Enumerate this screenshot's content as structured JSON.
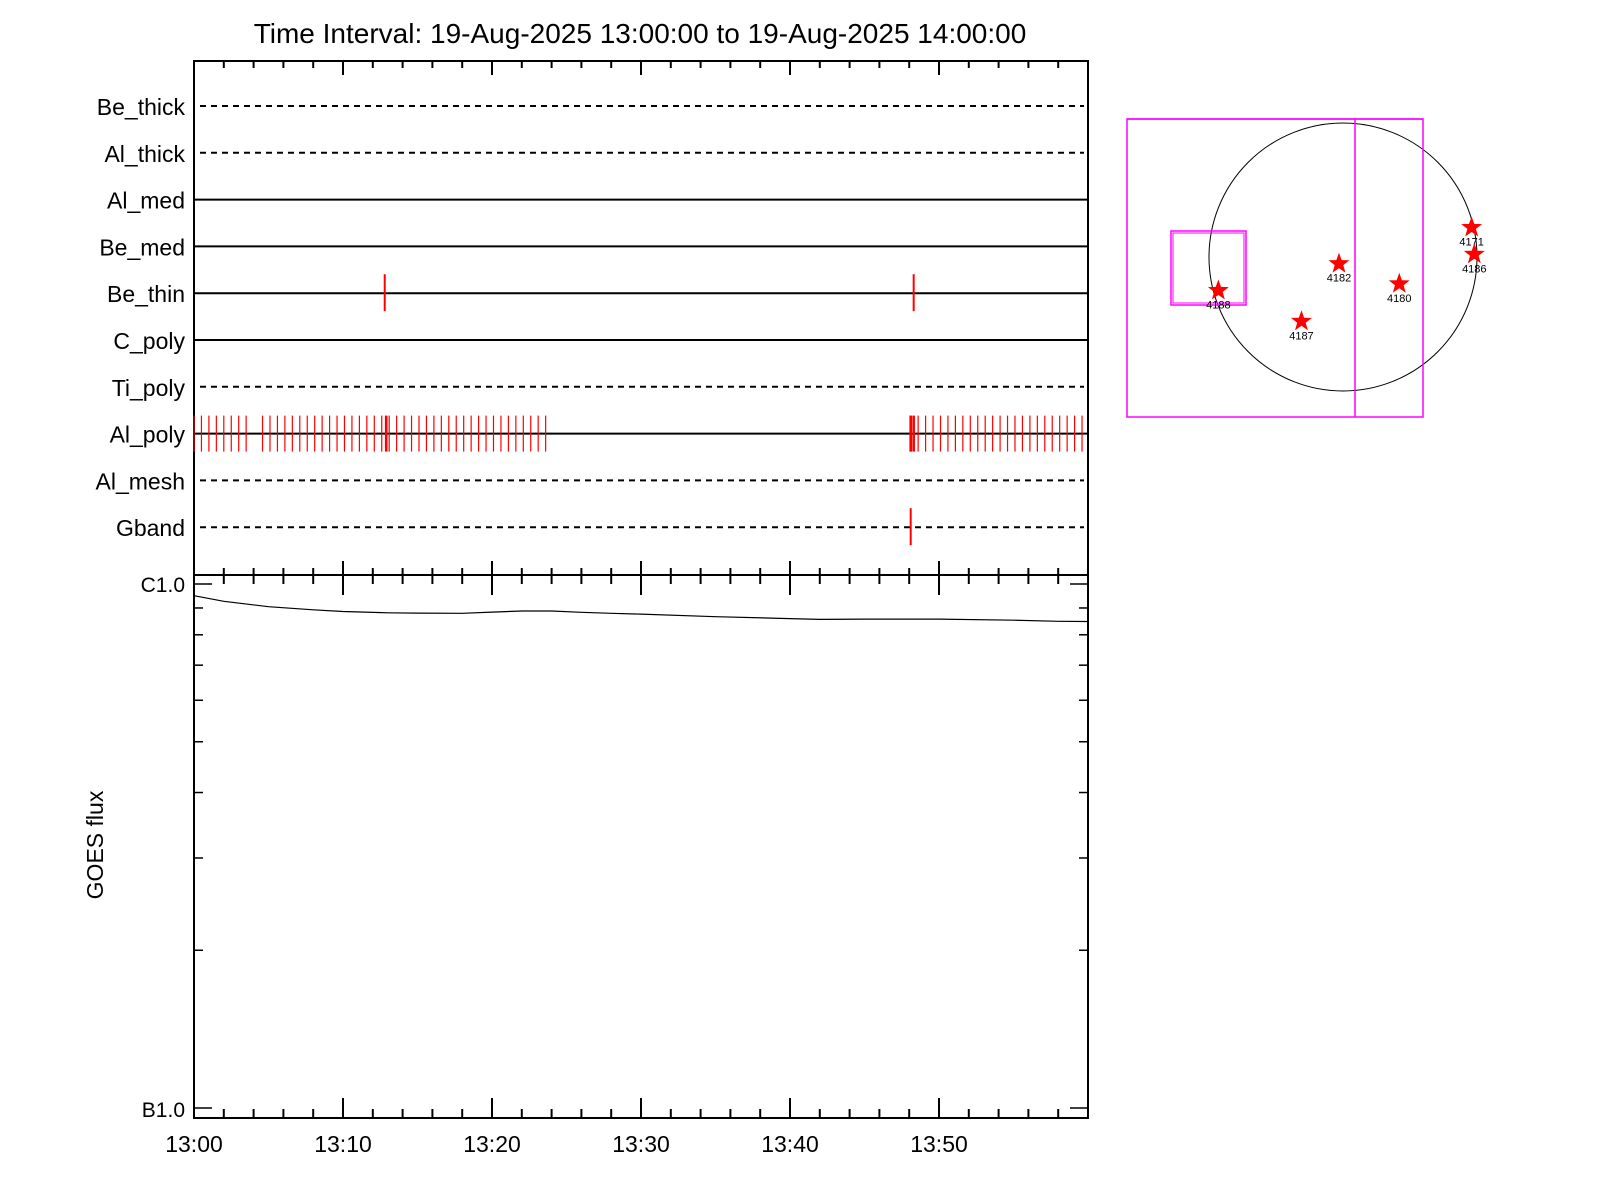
{
  "chart_data": [
    {
      "type": "timeline",
      "title": "Time Interval: 19-Aug-2025 13:00:00 to 19-Aug-2025 14:00:00",
      "x_range": [
        "13:00",
        "14:00"
      ],
      "x_ticks": [
        "13:00",
        "13:10",
        "13:20",
        "13:30",
        "13:40",
        "13:50"
      ],
      "series": [
        {
          "name": "Be_thick",
          "line": "dashed",
          "events": []
        },
        {
          "name": "Al_thick",
          "line": "dashed",
          "events": []
        },
        {
          "name": "Al_med",
          "line": "solid",
          "events": []
        },
        {
          "name": "Be_med",
          "line": "solid",
          "events": []
        },
        {
          "name": "Be_thin",
          "line": "solid",
          "events": [
            12.8,
            48.3
          ]
        },
        {
          "name": "C_poly",
          "line": "solid",
          "events": []
        },
        {
          "name": "Ti_poly",
          "line": "dashed",
          "events": []
        },
        {
          "name": "Al_poly",
          "line": "solid",
          "events": [],
          "event_ranges": [
            [
              0.0,
              3.5,
              0.5
            ],
            [
              4.6,
              23.6,
              0.5
            ],
            [
              48.1,
              59.6,
              0.5
            ]
          ],
          "emphasized": [
            12.9,
            48.1,
            48.3
          ]
        },
        {
          "name": "Al_mesh",
          "line": "dashed",
          "events": []
        },
        {
          "name": "Gband",
          "line": "dashed",
          "events": [
            48.1
          ]
        }
      ],
      "event_color": "#ff0000"
    },
    {
      "type": "line",
      "ylabel": "GOES flux",
      "yscale": "log",
      "ylim": [
        1e-07,
        1e-06
      ],
      "y_tick_labels": [
        "B1.0",
        "C1.0"
      ],
      "x_ticks": [
        "13:00",
        "13:10",
        "13:20",
        "13:30",
        "13:40",
        "13:50"
      ],
      "series": [
        {
          "x": [
            0,
            2,
            5,
            8,
            10,
            13,
            15,
            18,
            20,
            22,
            24,
            26,
            28,
            30,
            35,
            40,
            42,
            45,
            48,
            50,
            55,
            58,
            60
          ],
          "y": [
            9.5e-07,
            9.27e-07,
            9.05e-07,
            8.93e-07,
            8.86e-07,
            8.81e-07,
            8.8e-07,
            8.79e-07,
            8.84e-07,
            8.88e-07,
            8.88e-07,
            8.83e-07,
            8.79e-07,
            8.76e-07,
            8.66e-07,
            8.59e-07,
            8.56e-07,
            8.57e-07,
            8.57e-07,
            8.57e-07,
            8.53e-07,
            8.49e-07,
            8.48e-07
          ]
        }
      ]
    },
    {
      "type": "scatter",
      "markers": [
        {
          "label": "4171",
          "x": 0.96,
          "y": 0.22
        },
        {
          "label": "4186",
          "x": 0.98,
          "y": 0.02
        },
        {
          "label": "4182",
          "x": -0.03,
          "y": -0.05
        },
        {
          "label": "4180",
          "x": 0.42,
          "y": -0.2
        },
        {
          "label": "4188",
          "x": -0.93,
          "y": -0.25
        },
        {
          "label": "4187",
          "x": -0.31,
          "y": -0.48
        }
      ],
      "marker_color": "#ff0000",
      "box_color": "#ff00ff"
    }
  ]
}
